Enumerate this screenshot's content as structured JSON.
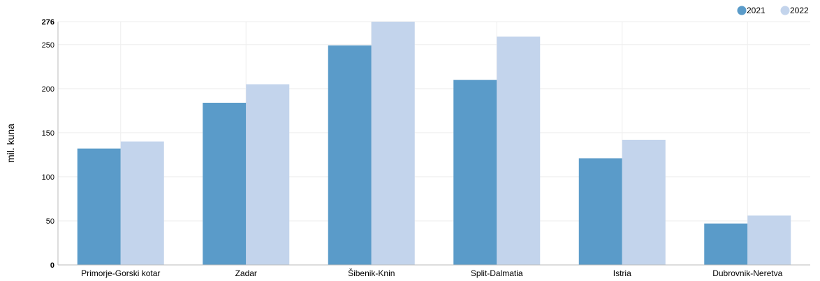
{
  "chart_data": {
    "type": "bar",
    "categories": [
      "Primorje-Gorski kotar",
      "Zadar",
      "Šibenik-Knin",
      "Split-Dalmatia",
      "Istria",
      "Dubrovnik-Neretva"
    ],
    "series": [
      {
        "name": "2021",
        "color": "#5a9bc9",
        "values": [
          132,
          184,
          249,
          210,
          121,
          47
        ]
      },
      {
        "name": "2022",
        "color": "#c3d4ec",
        "values": [
          140,
          205,
          276,
          259,
          142,
          56
        ]
      }
    ],
    "ylabel": "mil. kuna",
    "xlabel": "",
    "ylim": [
      0,
      276
    ],
    "yticks": [
      0,
      50,
      100,
      150,
      200,
      250,
      276
    ],
    "bold_ticks": [
      0,
      276
    ],
    "grid": true,
    "legend_position": "top-right"
  }
}
